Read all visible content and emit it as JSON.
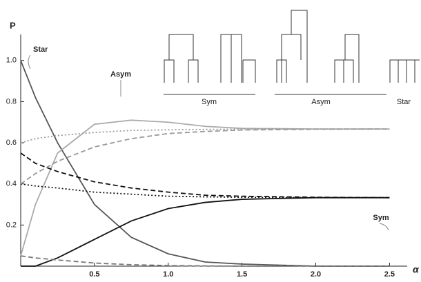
{
  "chart_data": {
    "type": "line",
    "ylabel": "P",
    "xlabel": "α",
    "x": [
      0,
      0.1,
      0.25,
      0.5,
      0.75,
      1,
      1.25,
      1.5,
      2,
      2.5
    ],
    "series": [
      {
        "color": "#555555",
        "dash": "solid",
        "values": [
          1.0,
          0.82,
          0.6,
          0.3,
          0.14,
          0.06,
          0.02,
          0.01,
          0,
          0
        ]
      },
      {
        "color": "#aaaaaa",
        "dash": "solid",
        "values": [
          0.05,
          0.3,
          0.55,
          0.69,
          0.71,
          0.7,
          0.68,
          0.67,
          0.667,
          0.667
        ]
      },
      {
        "color": "#111111",
        "dash": "solid",
        "values": [
          0,
          0,
          0.04,
          0.13,
          0.22,
          0.28,
          0.31,
          0.325,
          0.333,
          0.333
        ]
      },
      {
        "color": "#111111",
        "dash": "dashed",
        "values": [
          0.55,
          0.5,
          0.46,
          0.41,
          0.38,
          0.36,
          0.345,
          0.34,
          0.335,
          0.333
        ]
      },
      {
        "color": "#111111",
        "dash": "dotted",
        "values": [
          0.4,
          0.39,
          0.38,
          0.36,
          0.35,
          0.34,
          0.337,
          0.335,
          0.333,
          0.333
        ]
      },
      {
        "color": "#999999",
        "dash": "dotted",
        "values": [
          0.6,
          0.62,
          0.635,
          0.65,
          0.66,
          0.663,
          0.665,
          0.666,
          0.667,
          0.667
        ]
      },
      {
        "color": "#999999",
        "dash": "dashed",
        "values": [
          0.4,
          0.45,
          0.51,
          0.58,
          0.62,
          0.645,
          0.655,
          0.662,
          0.666,
          0.667
        ]
      },
      {
        "color": "#777777",
        "dash": "dashed",
        "values": [
          0.05,
          0.04,
          0.03,
          0.015,
          0.007,
          0.003,
          0.001,
          0,
          0,
          0
        ]
      }
    ],
    "xlim": [
      0,
      2.62
    ],
    "ylim": [
      0,
      1.11
    ],
    "xticks": [
      0.5,
      {
        "value": 1,
        "label": "1.0"
      },
      1.5,
      {
        "value": 2,
        "label": "2.0"
      },
      2.5
    ],
    "yticks": [
      0.2,
      0.4,
      0.6,
      0.8,
      {
        "value": 1,
        "label": "1.0"
      }
    ],
    "annotations": [
      "Star",
      "Asym",
      "Sym"
    ],
    "tree_labels": [
      "Sym",
      "Asym",
      "Star"
    ]
  }
}
